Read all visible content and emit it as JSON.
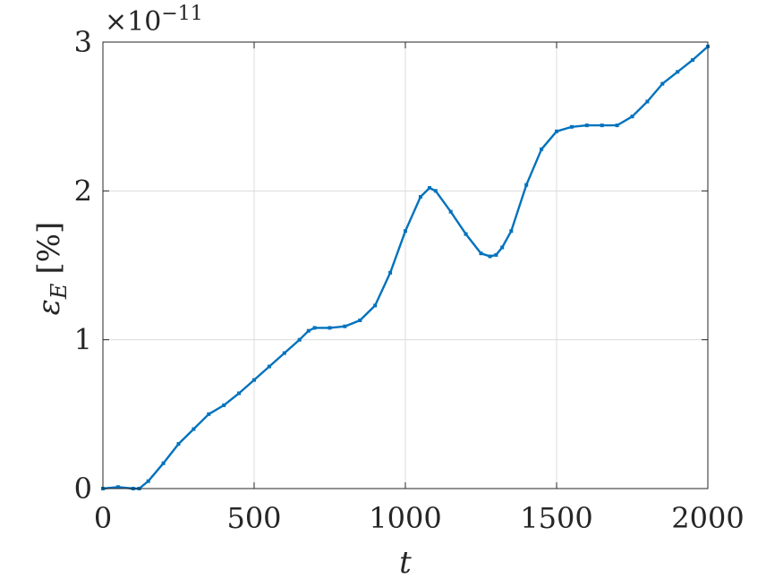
{
  "chart_data": {
    "type": "line",
    "xlabel": "t",
    "ylabel_symbol": "ε",
    "ylabel_subscript": "E",
    "ylabel_unit": "[%]",
    "y_exponent_label": "×10",
    "y_exponent": "−11",
    "xlim": [
      0,
      2000
    ],
    "ylim": [
      0,
      3
    ],
    "xticks": [
      0,
      500,
      1000,
      1500,
      2000
    ],
    "yticks": [
      0,
      1,
      2,
      3
    ],
    "xtick_labels": [
      "0",
      "500",
      "1000",
      "1500",
      "2000"
    ],
    "ytick_labels": [
      "0",
      "1",
      "2",
      "3"
    ],
    "grid": true,
    "series": [
      {
        "color": "#0072BD",
        "x": [
          0,
          50,
          100,
          120,
          150,
          200,
          250,
          300,
          350,
          400,
          450,
          500,
          550,
          600,
          650,
          680,
          700,
          750,
          800,
          850,
          900,
          950,
          1000,
          1050,
          1080,
          1100,
          1150,
          1200,
          1250,
          1280,
          1300,
          1320,
          1350,
          1400,
          1450,
          1500,
          1550,
          1600,
          1650,
          1700,
          1750,
          1800,
          1850,
          1900,
          1950,
          2000
        ],
        "y": [
          0.0,
          0.01,
          0.0,
          0.0,
          0.05,
          0.17,
          0.3,
          0.4,
          0.5,
          0.56,
          0.64,
          0.73,
          0.82,
          0.91,
          1.0,
          1.06,
          1.08,
          1.08,
          1.09,
          1.13,
          1.23,
          1.45,
          1.73,
          1.96,
          2.02,
          2.0,
          1.86,
          1.71,
          1.58,
          1.56,
          1.57,
          1.62,
          1.73,
          2.04,
          2.28,
          2.4,
          2.43,
          2.44,
          2.44,
          2.44,
          2.5,
          2.6,
          2.72,
          2.8,
          2.88,
          2.97
        ]
      }
    ]
  }
}
